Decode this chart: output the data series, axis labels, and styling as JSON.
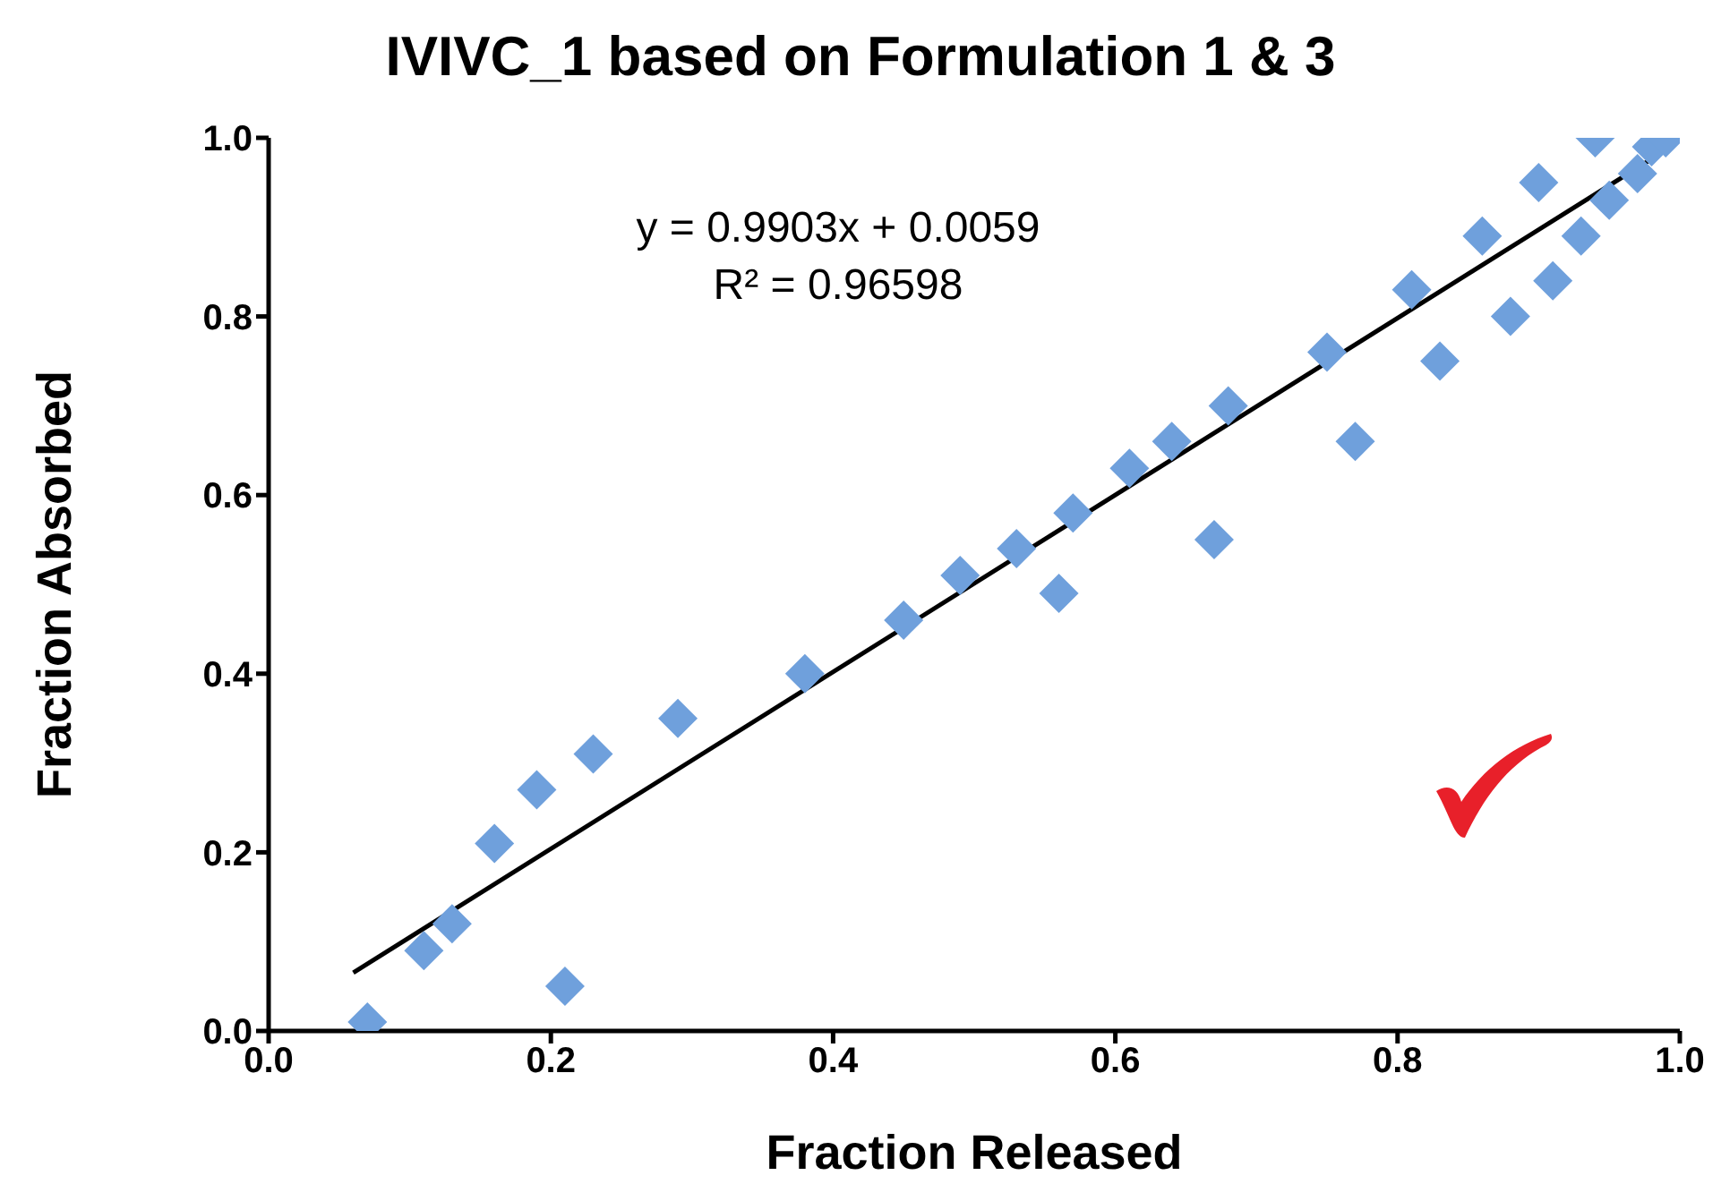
{
  "chart_data": {
    "type": "scatter",
    "title": "IVIVC_1 based on Formulation 1 & 3",
    "xlabel": "Fraction Released",
    "ylabel": "Fraction Absorbed",
    "annotations": [
      "y = 0.9903x + 0.0059",
      "R² = 0.96598"
    ],
    "marker": "diamond",
    "xlim": [
      0,
      1
    ],
    "xticks": [
      {
        "value": 0,
        "label": "0.0"
      },
      0.2,
      0.4,
      0.6,
      0.8,
      {
        "value": 1,
        "label": "1.0"
      }
    ],
    "ylim": [
      0,
      1
    ],
    "yticks": [
      {
        "value": 0,
        "label": "0.0"
      },
      0.2,
      0.4,
      0.6,
      0.8,
      {
        "value": 1,
        "label": "1.0"
      }
    ],
    "series": [
      {
        "color": "#6fa0dc",
        "x": [
          0.07,
          0.11,
          0.13,
          0.16,
          0.19,
          0.23,
          0.21,
          0.29,
          0.38,
          0.45,
          0.49,
          0.53,
          0.57,
          0.56,
          0.61,
          0.64,
          0.68,
          0.67,
          0.75,
          0.77,
          0.81,
          0.83,
          0.86,
          0.88,
          0.9,
          0.91,
          0.93,
          0.94,
          0.95,
          0.97,
          0.98,
          0.99
        ],
        "values": [
          0.01,
          0.09,
          0.12,
          0.21,
          0.27,
          0.31,
          0.05,
          0.35,
          0.4,
          0.46,
          0.51,
          0.54,
          0.58,
          0.49,
          0.63,
          0.66,
          0.7,
          0.55,
          0.76,
          0.66,
          0.83,
          0.75,
          0.89,
          0.8,
          0.95,
          0.84,
          0.89,
          1.0,
          0.93,
          0.96,
          0.99,
          1.0
        ]
      },
      {
        "type": "line",
        "marker": "none",
        "color": "#000000",
        "x": [
          0.06,
          0.98
        ],
        "values": [
          0.0653,
          0.9764
        ]
      }
    ]
  }
}
